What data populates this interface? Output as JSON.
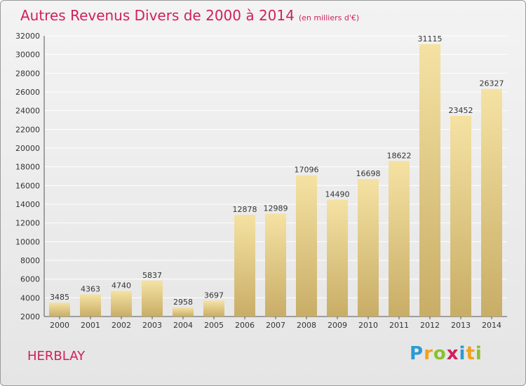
{
  "chart_data": {
    "type": "bar",
    "title": "Autres Revenus Divers de 2000 à 2014",
    "subtitle": "(en milliers d'€)",
    "categories": [
      "2000",
      "2001",
      "2002",
      "2003",
      "2004",
      "2005",
      "2006",
      "2007",
      "2008",
      "2009",
      "2010",
      "2011",
      "2012",
      "2013",
      "2014"
    ],
    "values": [
      3485,
      4363,
      4740,
      5837,
      2958,
      3697,
      12878,
      12989,
      17096,
      14490,
      16698,
      18622,
      31115,
      23452,
      26327
    ],
    "ylim": [
      2000,
      32000
    ],
    "yticks": [
      2000,
      4000,
      6000,
      8000,
      10000,
      12000,
      14000,
      16000,
      18000,
      20000,
      22000,
      24000,
      26000,
      28000,
      30000,
      32000
    ],
    "grid": true,
    "colors": {
      "bar_light": "#f5e2a3",
      "bar_dark": "#c8ad66",
      "title": "#d11f5b"
    }
  },
  "footer": {
    "town": "HERBLAY",
    "logo_letters": [
      "P",
      "r",
      "o",
      "x",
      "i",
      "t",
      "i"
    ],
    "logo_colors": [
      "#2b9ad6",
      "#f1a21c",
      "#8ac12f",
      "#d11f5b",
      "#2b9ad6",
      "#f1a21c",
      "#8ac12f"
    ]
  }
}
